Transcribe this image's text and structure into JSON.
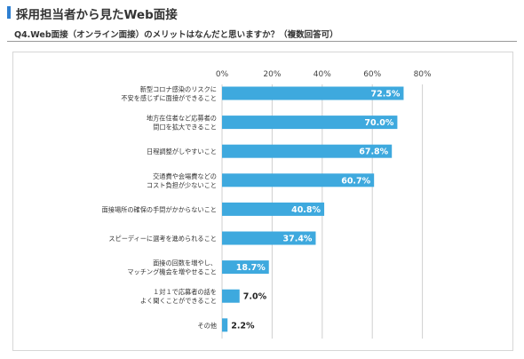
{
  "header": {
    "title": "採用担当者から見たWeb面接",
    "question": "Q4.Web面接（オンライン面接）のメリットはなんだと思いますか？（複数回答可）"
  },
  "colors": {
    "bar": "#3ea9de",
    "accent": "#2e7fd1",
    "grid": "#cfcfcf"
  },
  "chart_data": {
    "type": "bar",
    "orientation": "horizontal",
    "title": "",
    "xlabel": "",
    "ylabel": "",
    "xlim": [
      0,
      80
    ],
    "ticks": [
      "0%",
      "20%",
      "40%",
      "60%",
      "80%"
    ],
    "tick_values": [
      0,
      20,
      40,
      60,
      80
    ],
    "grid": true,
    "categories": [
      [
        "新型コロナ感染のリスクに",
        "不安を感じずに面接ができること"
      ],
      [
        "地方在住者など応募者の",
        "間口を拡大できること"
      ],
      [
        "日程調整がしやすいこと"
      ],
      [
        "交通費や会場費などの",
        "コスト負担が少ないこと"
      ],
      [
        "面接場所の確保の手間がかからないこと"
      ],
      [
        "スピーディーに選考を進められること"
      ],
      [
        "面接の回数を増やし、",
        "マッチング機会を増やせること"
      ],
      [
        "１対１で応募者の話を",
        "よく聞くことができること"
      ],
      [
        "その他"
      ]
    ],
    "values": [
      72.5,
      70.0,
      67.8,
      60.7,
      40.8,
      37.4,
      18.7,
      7.0,
      2.2
    ],
    "value_labels": [
      "72.5%",
      "70.0%",
      "67.8%",
      "60.7%",
      "40.8%",
      "37.4%",
      "18.7%",
      "7.0%",
      "2.2%"
    ]
  }
}
